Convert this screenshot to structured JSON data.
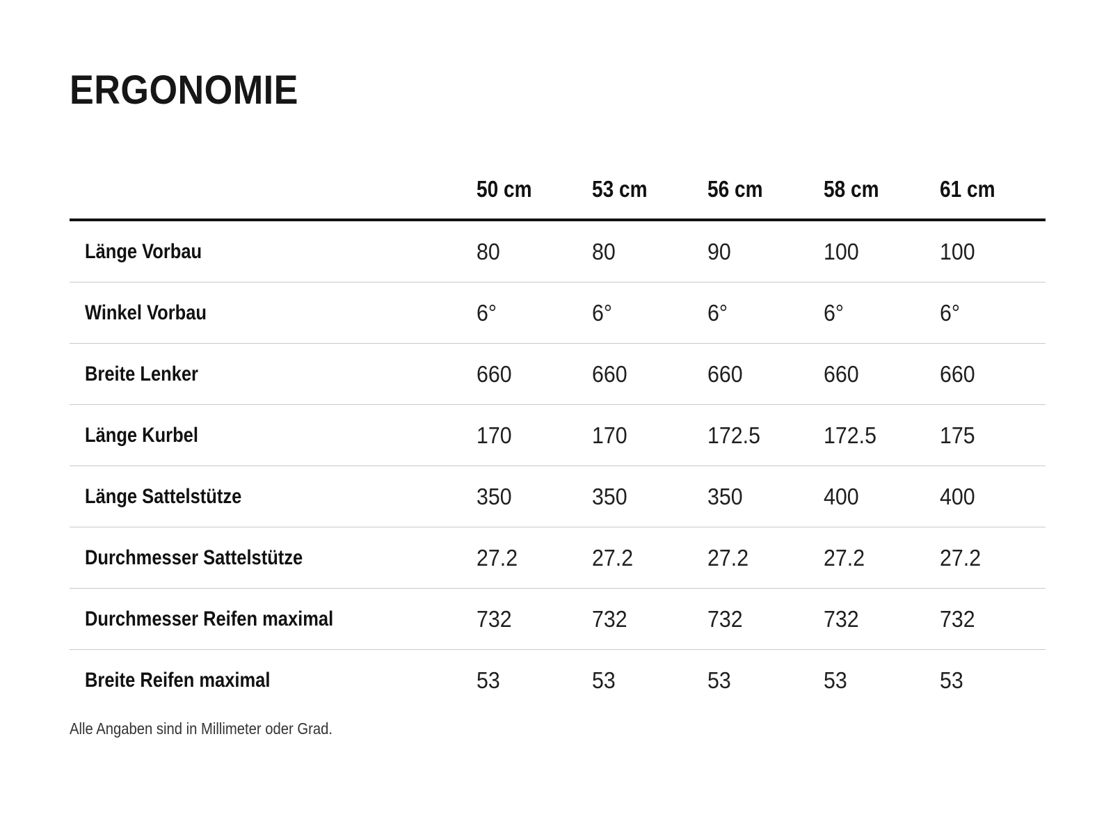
{
  "title": "ERGONOMIE",
  "table": {
    "size_headers": [
      "50 cm",
      "53 cm",
      "56 cm",
      "58 cm",
      "61 cm"
    ],
    "rows": [
      {
        "label": "Länge Vorbau",
        "values": [
          "80",
          "80",
          "90",
          "100",
          "100"
        ]
      },
      {
        "label": "Winkel Vorbau",
        "values": [
          "6°",
          "6°",
          "6°",
          "6°",
          "6°"
        ]
      },
      {
        "label": "Breite Lenker",
        "values": [
          "660",
          "660",
          "660",
          "660",
          "660"
        ]
      },
      {
        "label": "Länge Kurbel",
        "values": [
          "170",
          "170",
          "172.5",
          "172.5",
          "175"
        ]
      },
      {
        "label": "Länge Sattelstütze",
        "values": [
          "350",
          "350",
          "350",
          "400",
          "400"
        ]
      },
      {
        "label": "Durchmesser Sattelstütze",
        "values": [
          "27.2",
          "27.2",
          "27.2",
          "27.2",
          "27.2"
        ]
      },
      {
        "label": "Durchmesser Reifen maximal",
        "values": [
          "732",
          "732",
          "732",
          "732",
          "732"
        ]
      },
      {
        "label": "Breite Reifen maximal",
        "values": [
          "53",
          "53",
          "53",
          "53",
          "53"
        ]
      }
    ]
  },
  "footnote": "Alle Angaben sind in Millimeter oder Grad.",
  "colors": {
    "text": "#1a1a1a",
    "header_rule": "#111111",
    "row_divider": "#c9c9c9",
    "background": "#ffffff"
  }
}
